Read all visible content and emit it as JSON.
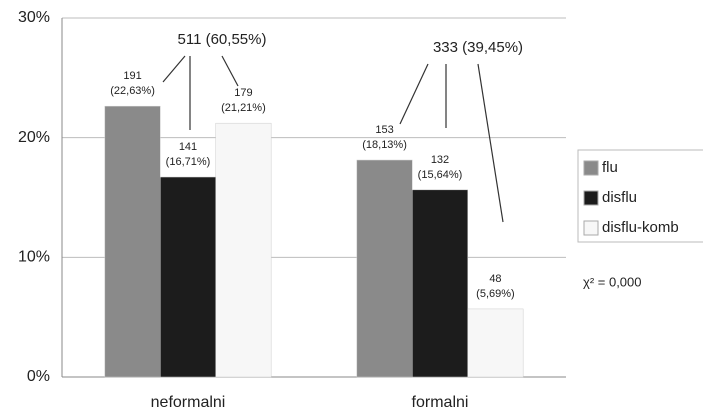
{
  "chart_data": {
    "type": "bar",
    "categories": [
      "neformalni",
      "formalni"
    ],
    "series": [
      {
        "name": "flu",
        "color": "#8a8a8a",
        "values": [
          22.63,
          18.13
        ],
        "value_labels": [
          "191 (22,63%)",
          "153 (18,13%)"
        ]
      },
      {
        "name": "disflu",
        "color": "#1c1c1c",
        "values": [
          16.71,
          15.64
        ],
        "value_labels": [
          "141 (16,71%)",
          "132 (15,64%)"
        ]
      },
      {
        "name": "disflu-komb",
        "color": "#f7f7f7",
        "values": [
          21.21,
          5.69
        ],
        "value_labels": [
          "179 (21,21%)",
          "48 (5,69%)"
        ]
      }
    ],
    "ylim": [
      0,
      30
    ],
    "yticks": [
      {
        "value": 0,
        "label": "0%"
      },
      {
        "value": 10,
        "label": "10%"
      },
      {
        "value": 20,
        "label": "20%"
      },
      {
        "value": 30,
        "label": "30%"
      }
    ],
    "grid": true,
    "legend": "right",
    "annotations": [
      "511 (60,55%)",
      "333 (39,45%)",
      "χ² = 0,000"
    ]
  }
}
